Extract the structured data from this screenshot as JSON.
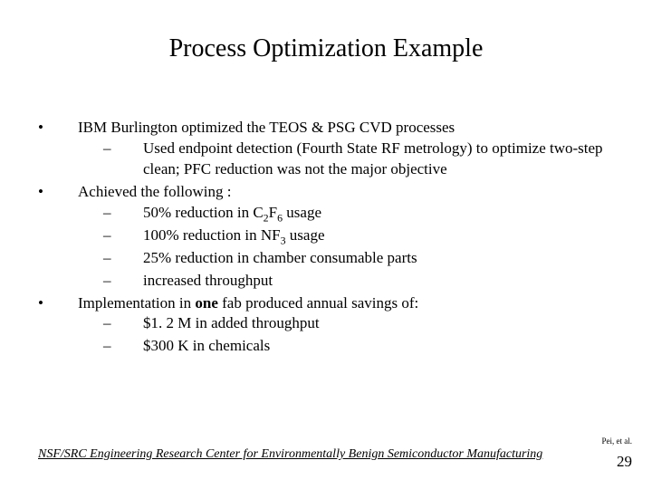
{
  "title": "Process Optimization Example",
  "bullets": {
    "b1": "IBM Burlington optimized the TEOS & PSG CVD processes",
    "b1_1": "Used endpoint detection (Fourth State RF metrology) to optimize two-step clean; PFC reduction was not the major objective",
    "b2": "Achieved the following :",
    "b2_1_pre": "50% reduction in C",
    "b2_1_sub1": "2",
    "b2_1_mid": "F",
    "b2_1_sub2": "6",
    "b2_1_post": " usage",
    "b2_2_pre": "100% reduction in NF",
    "b2_2_sub": "3",
    "b2_2_post": " usage",
    "b2_3": "25% reduction in chamber consumable parts",
    "b2_4": "increased throughput",
    "b3_pre": "Implementation in ",
    "b3_bold": "one",
    "b3_post": " fab produced annual savings of:",
    "b3_1": "$1. 2 M in added throughput",
    "b3_2": "$300 K in chemicals"
  },
  "footer": "NSF/SRC Engineering Research Center for Environmentally Benign Semiconductor Manufacturing",
  "ref": "Pei, et al.",
  "page": "29"
}
